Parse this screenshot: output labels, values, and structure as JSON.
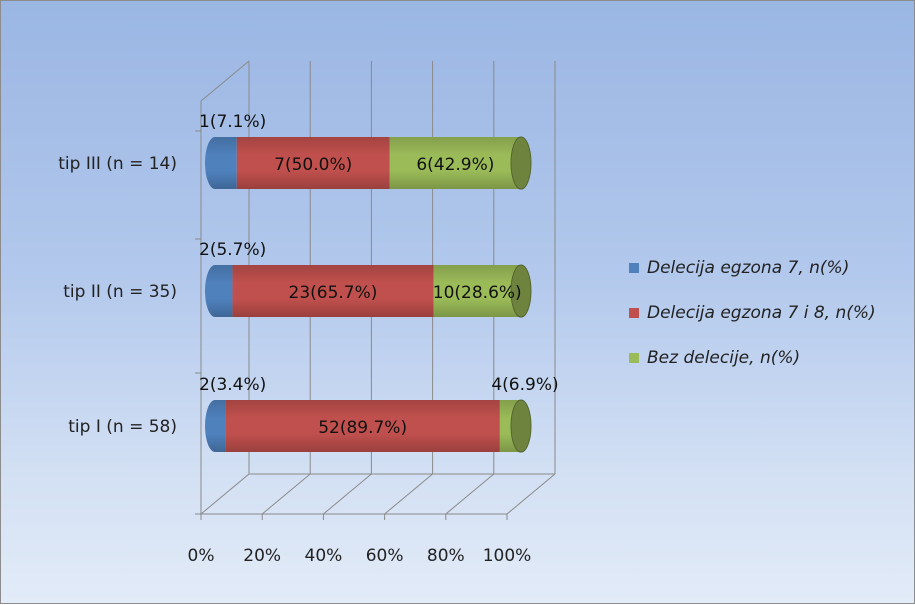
{
  "chart_data": {
    "type": "bar",
    "orientation": "horizontal",
    "stacked": "percent",
    "three_d": true,
    "categories": [
      "tip III (n = 14)",
      "tip  II (n = 35)",
      "tip I (n = 58)"
    ],
    "series": [
      {
        "name": "Delecija egzona 7, n(%)",
        "color": "#4f81bd",
        "values": [
          7.1,
          5.7,
          3.4
        ],
        "labels": [
          "1(7.1%)",
          "2(5.7%)",
          "2(3.4%)"
        ]
      },
      {
        "name": "Delecija egzona 7 i 8, n(%)",
        "color": "#c0504d",
        "values": [
          50.0,
          65.7,
          89.7
        ],
        "labels": [
          "7(50.0%)",
          "23(65.7%)",
          "52(89.7%)"
        ]
      },
      {
        "name": "Bez delecije, n(%)",
        "color": "#9bbb59",
        "values": [
          42.9,
          28.6,
          6.9
        ],
        "labels": [
          "6(42.9%)",
          "10(28.6%)",
          "4(6.9%)"
        ]
      }
    ],
    "x_ticks": [
      "0%",
      "20%",
      "40%",
      "60%",
      "80%",
      "100%"
    ],
    "xlim": [
      0,
      100
    ],
    "grid": true,
    "legend_position": "right"
  }
}
